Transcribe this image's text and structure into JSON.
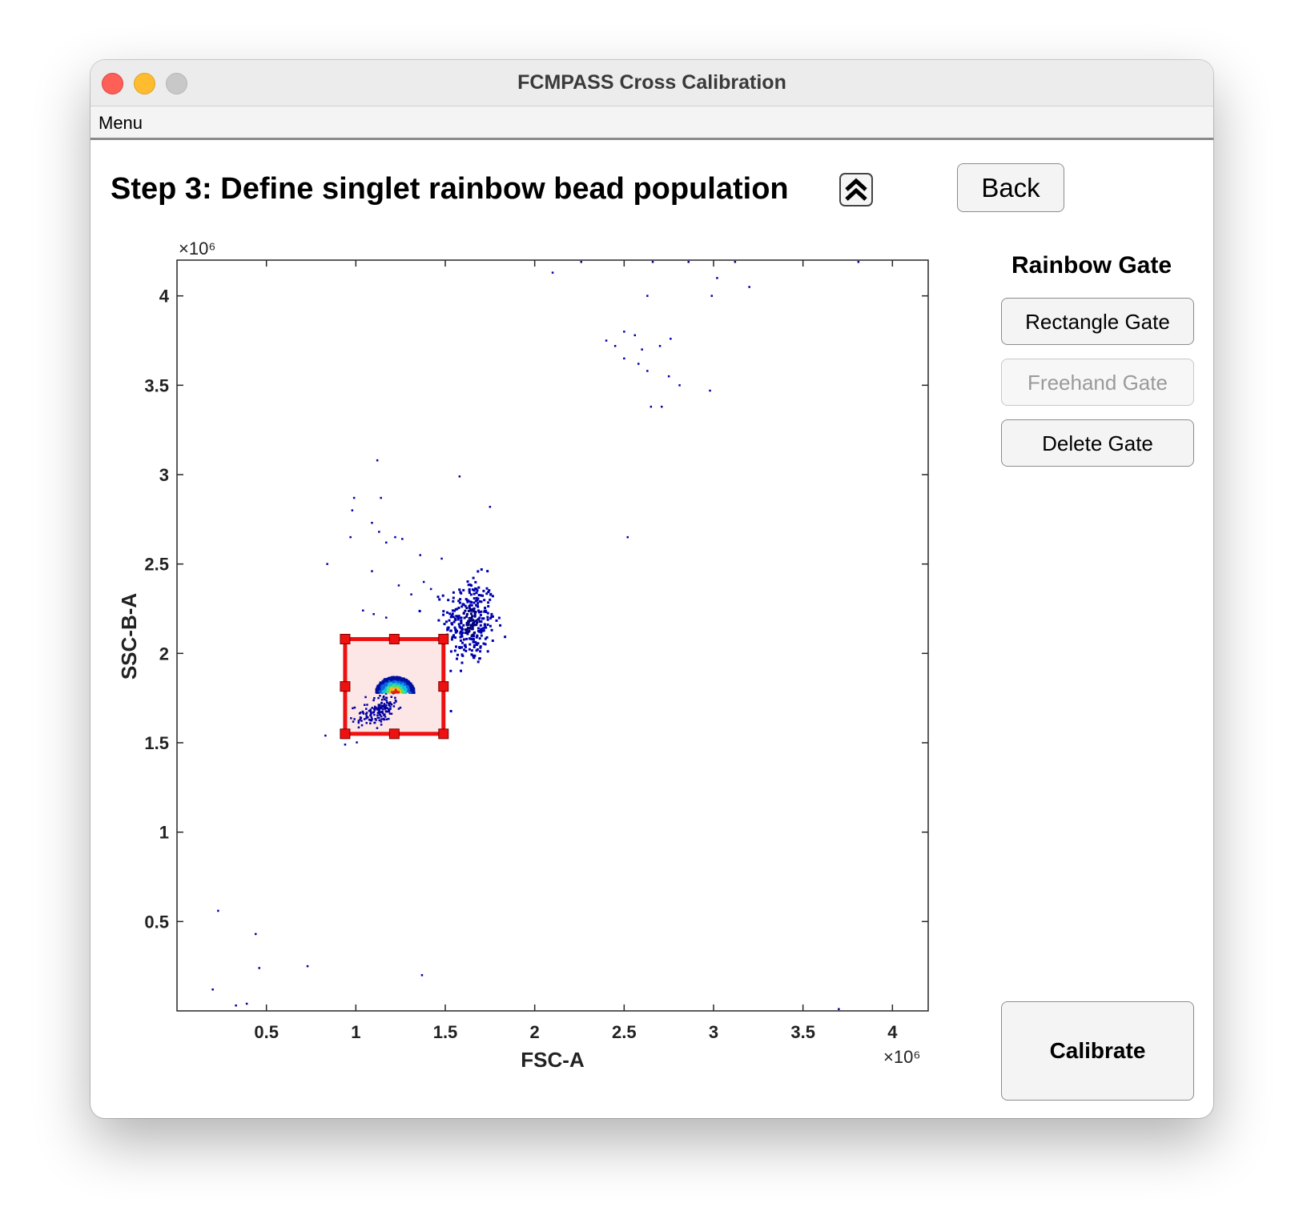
{
  "window": {
    "title": "FCMPASS Cross Calibration"
  },
  "menubar": {
    "items": [
      "Menu"
    ]
  },
  "step": {
    "title": "Step 3: Define singlet rainbow bead population"
  },
  "buttons": {
    "back": "Back",
    "rectangle_gate": "Rectangle Gate",
    "freehand_gate": "Freehand Gate",
    "delete_gate": "Delete Gate",
    "calibrate": "Calibrate"
  },
  "gate_panel": {
    "title": "Rainbow Gate"
  },
  "chart_data": {
    "type": "scatter",
    "xlabel": "FSC-A",
    "ylabel": "SSC-B-A",
    "x_multiplier": "×10⁶",
    "y_multiplier": "×10⁶",
    "xlim": [
      0,
      4.2
    ],
    "ylim": [
      0,
      4.2
    ],
    "xticks": [
      "0.5",
      "1",
      "1.5",
      "2",
      "2.5",
      "3",
      "3.5",
      "4"
    ],
    "yticks": [
      "0.5",
      "1",
      "1.5",
      "2",
      "2.5",
      "3",
      "3.5",
      "4"
    ],
    "colormap": "density (blue to red)",
    "gate": {
      "type": "rectangle",
      "x_range": [
        0.94,
        1.49
      ],
      "y_range": [
        1.55,
        2.08
      ],
      "color": "#ee1111"
    },
    "clusters": [
      {
        "center": [
          1.22,
          1.8
        ],
        "spread": [
          0.09,
          0.08
        ],
        "density": "high"
      },
      {
        "center": [
          1.64,
          2.18
        ],
        "spread": [
          0.07,
          0.12
        ],
        "density": "medium"
      }
    ],
    "sparse_points": [
      [
        2.1,
        4.13
      ],
      [
        2.26,
        4.19
      ],
      [
        2.66,
        4.19
      ],
      [
        2.86,
        4.19
      ],
      [
        3.12,
        4.19
      ],
      [
        3.81,
        4.19
      ],
      [
        2.63,
        4.0
      ],
      [
        2.99,
        4.0
      ],
      [
        3.02,
        4.1
      ],
      [
        3.2,
        4.05
      ],
      [
        2.4,
        3.75
      ],
      [
        2.5,
        3.8
      ],
      [
        2.56,
        3.78
      ],
      [
        2.45,
        3.72
      ],
      [
        2.6,
        3.7
      ],
      [
        2.7,
        3.72
      ],
      [
        2.76,
        3.76
      ],
      [
        2.5,
        3.65
      ],
      [
        2.58,
        3.62
      ],
      [
        2.63,
        3.58
      ],
      [
        2.75,
        3.55
      ],
      [
        2.81,
        3.5
      ],
      [
        2.98,
        3.47
      ],
      [
        2.65,
        3.38
      ],
      [
        2.71,
        3.38
      ],
      [
        1.12,
        3.08
      ],
      [
        0.99,
        2.87
      ],
      [
        1.14,
        2.87
      ],
      [
        1.58,
        2.99
      ],
      [
        1.75,
        2.82
      ],
      [
        0.98,
        2.8
      ],
      [
        1.09,
        2.73
      ],
      [
        1.13,
        2.68
      ],
      [
        0.97,
        2.65
      ],
      [
        1.22,
        2.65
      ],
      [
        1.17,
        2.62
      ],
      [
        1.26,
        2.64
      ],
      [
        0.84,
        2.5
      ],
      [
        1.36,
        2.55
      ],
      [
        1.48,
        2.53
      ],
      [
        1.09,
        2.46
      ],
      [
        2.52,
        2.65
      ],
      [
        1.24,
        2.38
      ],
      [
        1.38,
        2.4
      ],
      [
        1.42,
        2.36
      ],
      [
        1.31,
        2.33
      ],
      [
        1.04,
        2.24
      ],
      [
        1.1,
        2.22
      ],
      [
        1.17,
        2.2
      ],
      [
        0.23,
        0.56
      ],
      [
        0.44,
        0.43
      ],
      [
        0.46,
        0.24
      ],
      [
        0.73,
        0.25
      ],
      [
        1.37,
        0.2
      ],
      [
        0.2,
        0.12
      ],
      [
        0.33,
        0.03
      ],
      [
        0.39,
        0.04
      ],
      [
        0.83,
        1.54
      ],
      [
        0.94,
        1.49
      ],
      [
        3.7,
        0.01
      ]
    ]
  }
}
